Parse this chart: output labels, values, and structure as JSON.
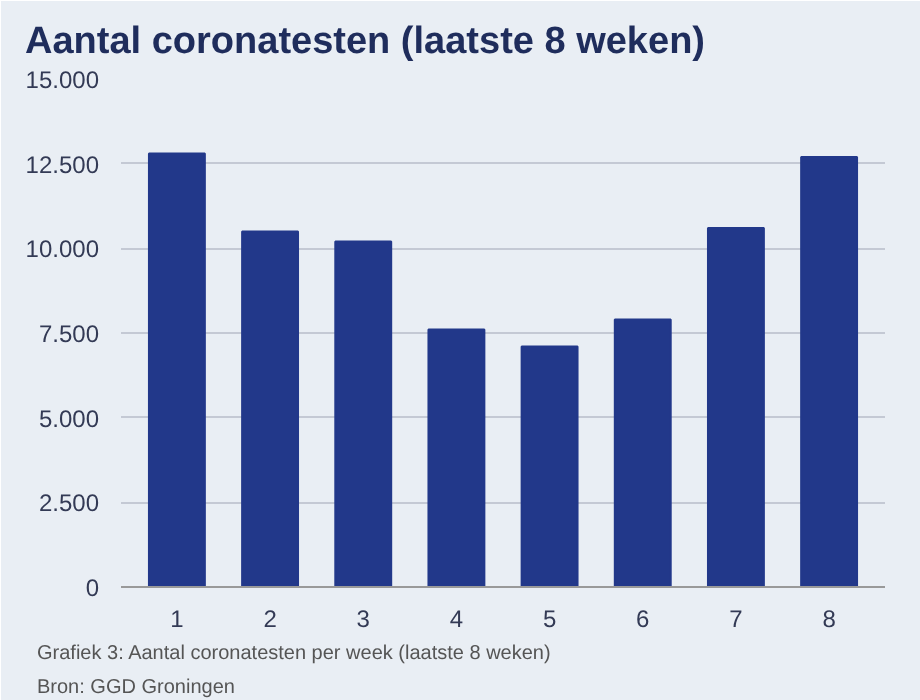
{
  "chart_data": {
    "type": "bar",
    "title": "Aantal coronatesten (laatste 8 weken)",
    "categories": [
      "1",
      "2",
      "3",
      "4",
      "5",
      "6",
      "7",
      "8"
    ],
    "values": [
      12800,
      10500,
      10200,
      7600,
      7100,
      7900,
      10600,
      12700
    ],
    "color": "#22388a",
    "ylim": [
      0,
      15000
    ],
    "yticks": [
      {
        "value": 0,
        "label": "0"
      },
      {
        "value": 2500,
        "label": "2.500"
      },
      {
        "value": 5000,
        "label": "5.000"
      },
      {
        "value": 7500,
        "label": "7.500"
      },
      {
        "value": 10000,
        "label": "10.000"
      },
      {
        "value": 12500,
        "label": "12.500"
      },
      {
        "value": 15000,
        "label": "15.000"
      }
    ],
    "grid": "y",
    "annotations": [
      "Grafiek 3: Aantal coronatesten per week (laatste 8 weken)",
      "Bron: GGD Groningen"
    ]
  }
}
